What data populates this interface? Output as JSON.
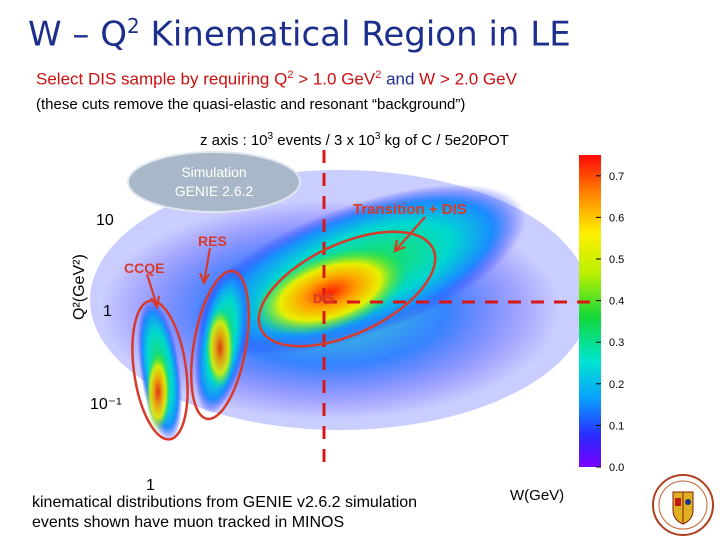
{
  "slide": {
    "title_part1": "W – Q",
    "title_sup": "2",
    "title_part2": " Kinematical Region in LE",
    "cuts_a": "Select DIS sample by requiring ",
    "cuts_q": "Q",
    "cuts_q_sup": "2",
    "cuts_b": " > 1.0 GeV",
    "cuts_b_sup": "2",
    "cuts_c": " and ",
    "cuts_w": "W > 2.0 GeV",
    "note": "(these cuts remove the quasi-elastic and resonant “background”)",
    "zaxis_a": "z axis : 10",
    "zaxis_sup1": "3",
    "zaxis_b": " events / 3 x 10",
    "zaxis_sup2": "3",
    "zaxis_c": " kg of C / 5e20POT",
    "footer_line1": "kinematical distributions from GENIE v2.6.2 simulation",
    "footer_line2": "events shown have muon tracked in MINOS"
  },
  "chart_data": {
    "type": "heatmap",
    "title": "",
    "xlabel": "W(GeV)",
    "ylabel": "Q²(GeV²)",
    "y_scale": "log",
    "x_tick_labels": [
      "1"
    ],
    "y_tick_labels": [
      "10",
      "1",
      "10⁻¹"
    ],
    "y_ticks": [
      10,
      1,
      0.1
    ],
    "ylim": [
      0.03,
      30
    ],
    "z_range": [
      0.0,
      0.75
    ],
    "colorbar_ticks": [
      0.0,
      0.1,
      0.2,
      0.3,
      0.4,
      0.5,
      0.6,
      0.7
    ],
    "colorbar_labels": [
      "0.0",
      "0.1",
      "0.2",
      "0.3",
      "0.4",
      "0.5",
      "0.6",
      "0.7"
    ],
    "cuts": {
      "q2_min": 1.0,
      "w_min": 2.0
    },
    "annotations": {
      "simulation_line1": "Simulation",
      "simulation_line2": "GENIE 2.6.2",
      "ccqe": "CCQE",
      "res": "RES",
      "transition": "Transition + DIS",
      "dis": "DIS"
    },
    "colors": {
      "plot_bg": "#ffffff",
      "annotation": "#d83a2a",
      "cut_lines": "#d81818",
      "bubble_bg": "#a9b8c8"
    }
  }
}
